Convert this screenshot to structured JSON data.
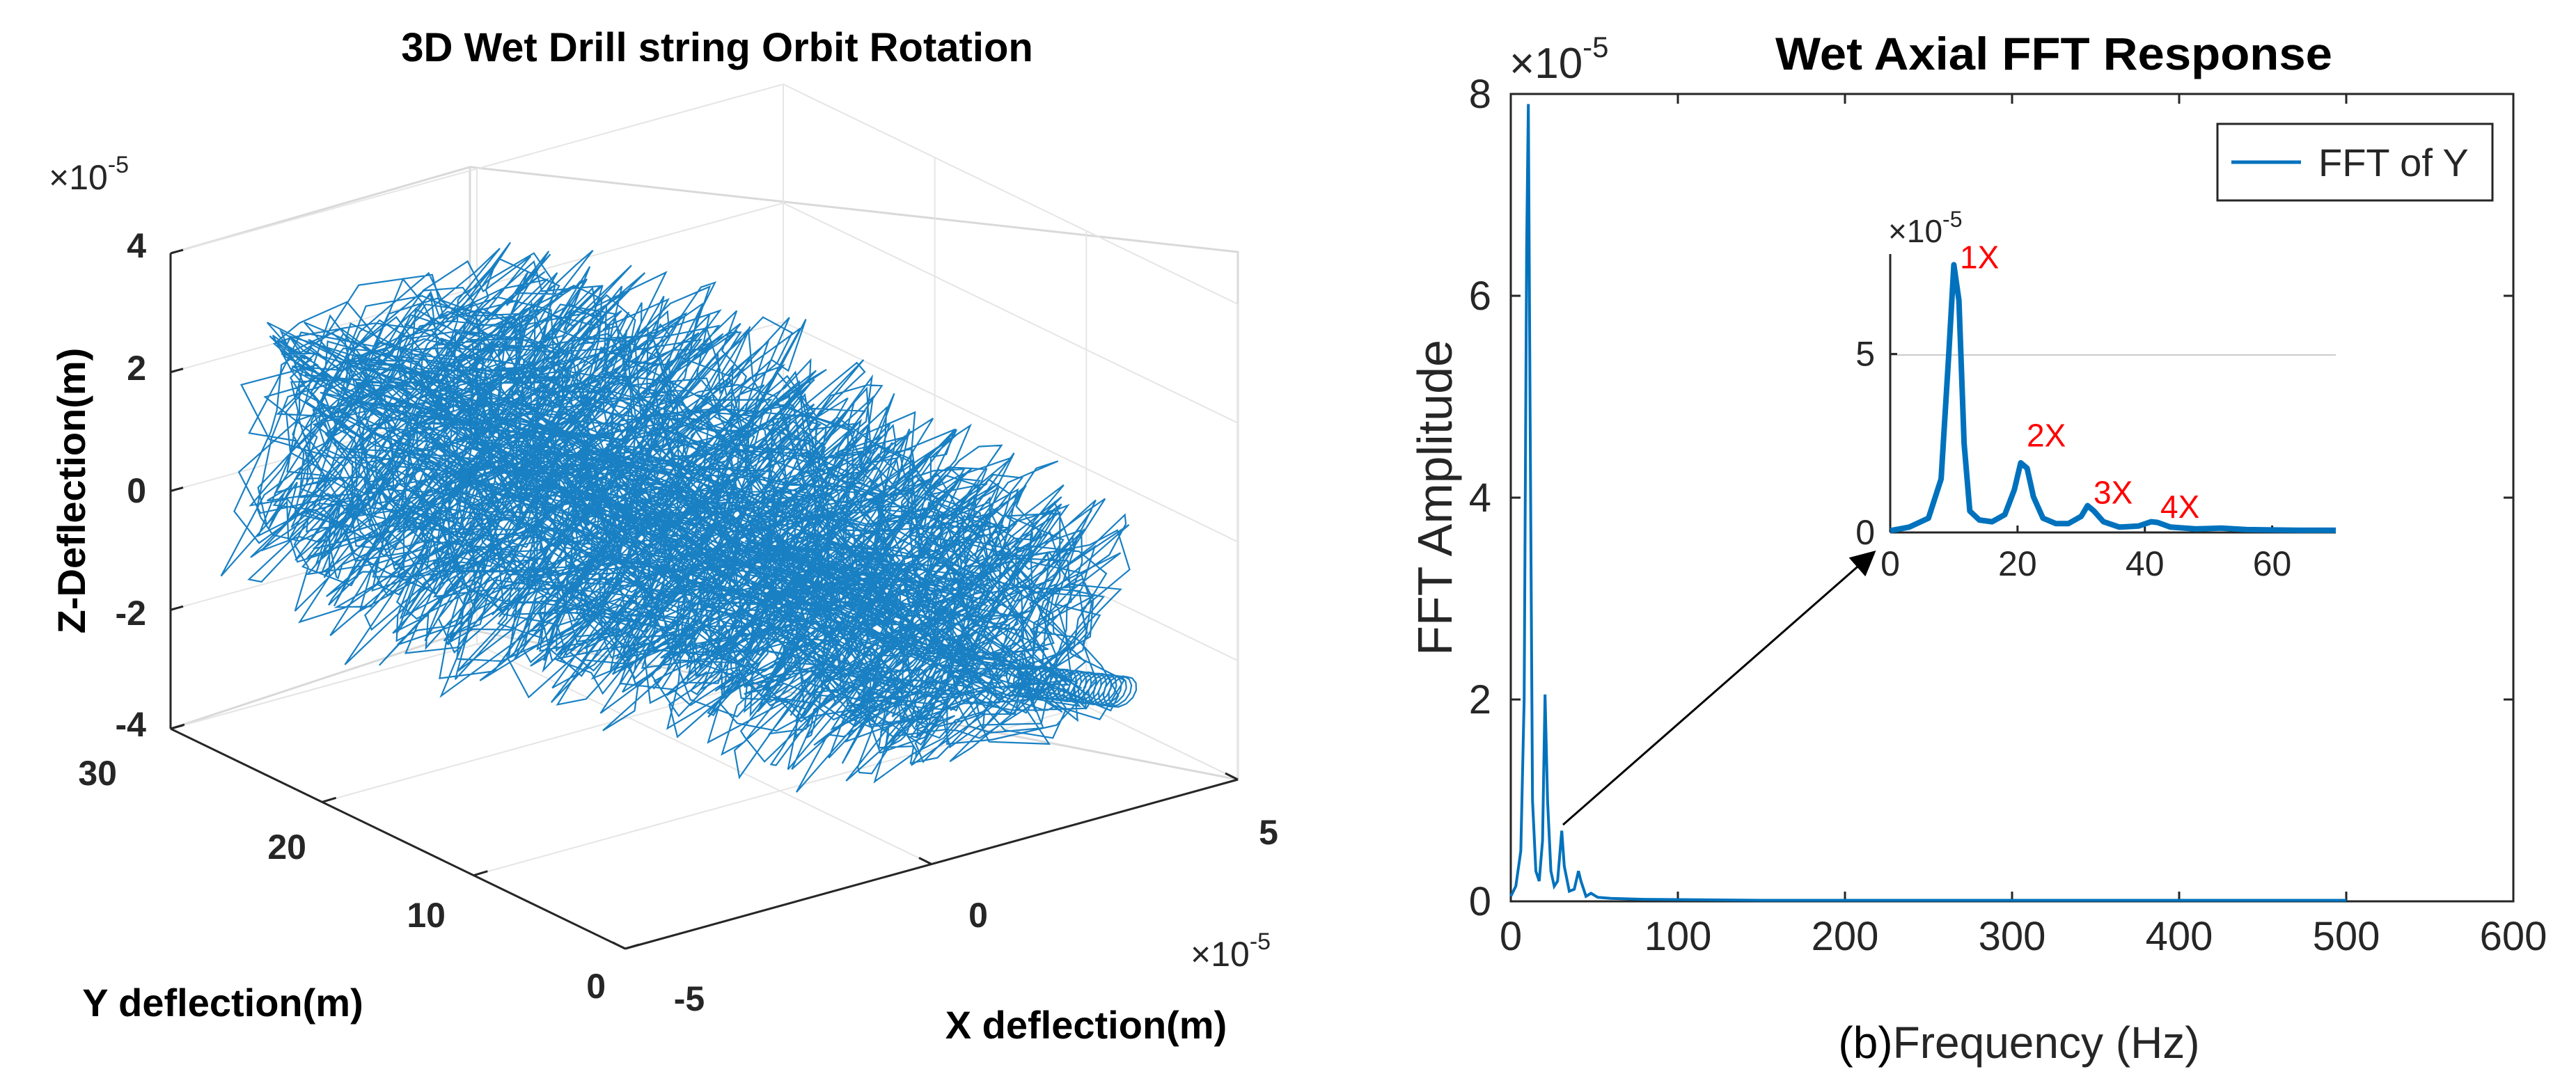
{
  "chart_data": [
    {
      "type": "line3d",
      "title": "3D Wet Drill string Orbit Rotation",
      "xlabel": "X deflection(m)",
      "ylabel": "Y deflection(m)",
      "zlabel": "Z-Deflection(m)",
      "x_ticks": [
        "-5",
        "0",
        "5"
      ],
      "y_ticks": [
        "0",
        "10",
        "20",
        "30"
      ],
      "z_ticks": [
        "-4",
        "-2",
        "0",
        "2",
        "4"
      ],
      "x_exponent": "×10",
      "x_exponent_power": "-5",
      "z_exponent": "×10",
      "z_exponent_power": "-5",
      "xlim": [
        -5,
        5
      ],
      "ylim": [
        0,
        30
      ],
      "zlim": [
        -4,
        4
      ],
      "grid": true,
      "color": "#0072BD",
      "description_of_series": "dense orbit of drill string deflection; cluster spans x≈-5..3e-5, y≈3..27 m, z≈-3..4e-5"
    },
    {
      "type": "line",
      "title": "Wet Axial FFT Response",
      "xlabel": "Frequency (Hz)",
      "caption_prefix": "(b)",
      "ylabel": "FFT Amplitude",
      "x_ticks": [
        "0",
        "100",
        "200",
        "300",
        "400",
        "500",
        "600"
      ],
      "y_ticks": [
        "0",
        "2",
        "4",
        "6",
        "8"
      ],
      "y_exponent": "×10",
      "y_exponent_power": "-5",
      "xlim": [
        0,
        600
      ],
      "ylim": [
        0,
        8
      ],
      "grid": false,
      "legend": {
        "entries": [
          "FFT of Y"
        ],
        "placement": "top-right"
      },
      "color": "#0072BD",
      "series": [
        {
          "name": "FFT of Y",
          "points": [
            [
              0,
              0.05
            ],
            [
              3,
              0.15
            ],
            [
              6,
              0.5
            ],
            [
              8,
              2.0
            ],
            [
              9.5,
              6.5
            ],
            [
              10.5,
              7.9
            ],
            [
              11.5,
              5.0
            ],
            [
              13,
              1.0
            ],
            [
              15,
              0.3
            ],
            [
              17,
              0.2
            ],
            [
              19,
              0.6
            ],
            [
              20.5,
              2.05
            ],
            [
              22,
              1.0
            ],
            [
              24,
              0.3
            ],
            [
              26,
              0.15
            ],
            [
              28,
              0.2
            ],
            [
              29.5,
              0.5
            ],
            [
              30.5,
              0.7
            ],
            [
              32,
              0.35
            ],
            [
              35,
              0.1
            ],
            [
              38,
              0.12
            ],
            [
              40.5,
              0.3
            ],
            [
              42,
              0.2
            ],
            [
              45,
              0.05
            ],
            [
              48,
              0.08
            ],
            [
              52,
              0.04
            ],
            [
              60,
              0.03
            ],
            [
              80,
              0.02
            ],
            [
              150,
              0.01
            ],
            [
              300,
              0.01
            ],
            [
              500,
              0.01
            ]
          ]
        }
      ],
      "inset": {
        "x_ticks": [
          "0",
          "20",
          "40",
          "60"
        ],
        "y_ticks": [
          "0",
          "5"
        ],
        "y_exponent": "×10",
        "y_exponent_power": "-5",
        "xlim": [
          0,
          70
        ],
        "ylim": [
          0,
          7.8
        ],
        "annotations": [
          {
            "label": "1X",
            "x": 10.5,
            "y": 7.6
          },
          {
            "label": "2X",
            "x": 21,
            "y": 2.6
          },
          {
            "label": "3X",
            "x": 31.5,
            "y": 1.0
          },
          {
            "label": "4X",
            "x": 42,
            "y": 0.6
          }
        ],
        "annotation_color": "#FF0000",
        "points": [
          [
            0,
            0.05
          ],
          [
            3,
            0.15
          ],
          [
            6,
            0.4
          ],
          [
            8,
            1.5
          ],
          [
            9.2,
            5.0
          ],
          [
            10,
            7.5
          ],
          [
            10.8,
            6.5
          ],
          [
            11.6,
            2.5
          ],
          [
            12.5,
            0.6
          ],
          [
            14,
            0.35
          ],
          [
            16,
            0.3
          ],
          [
            18,
            0.5
          ],
          [
            19.5,
            1.2
          ],
          [
            20.5,
            1.95
          ],
          [
            21.5,
            1.8
          ],
          [
            22.5,
            1.0
          ],
          [
            24,
            0.4
          ],
          [
            26,
            0.25
          ],
          [
            28,
            0.25
          ],
          [
            30,
            0.45
          ],
          [
            31,
            0.75
          ],
          [
            32,
            0.6
          ],
          [
            33.5,
            0.3
          ],
          [
            36,
            0.15
          ],
          [
            39,
            0.18
          ],
          [
            41,
            0.3
          ],
          [
            42,
            0.28
          ],
          [
            44,
            0.15
          ],
          [
            48,
            0.1
          ],
          [
            52,
            0.12
          ],
          [
            56,
            0.08
          ],
          [
            60,
            0.07
          ],
          [
            65,
            0.06
          ],
          [
            70,
            0.06
          ]
        ]
      }
    }
  ]
}
